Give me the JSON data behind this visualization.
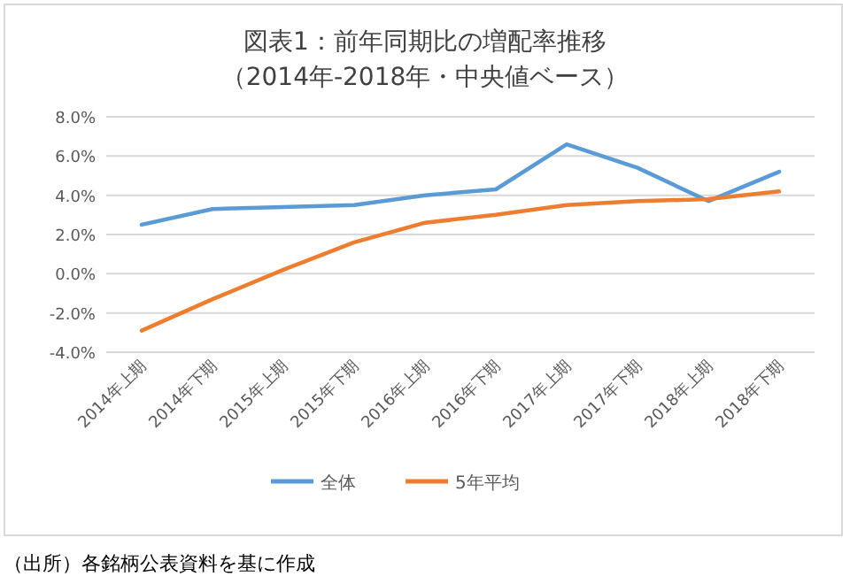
{
  "chart_data": {
    "type": "line",
    "title": "図表1：前年同期比の増配率推移",
    "subtitle": "（2014年-2018年・中央値ベース）",
    "categories": [
      "2014年上期",
      "2014年下期",
      "2015年上期",
      "2015年下期",
      "2016年上期",
      "2016年下期",
      "2017年上期",
      "2017年下期",
      "2018年上期",
      "2018年下期"
    ],
    "series": [
      {
        "name": "全体",
        "color": "#5b9bd5",
        "values": [
          2.5,
          3.3,
          3.4,
          3.5,
          4.0,
          4.3,
          6.6,
          5.4,
          3.7,
          5.2
        ]
      },
      {
        "name": "5年平均",
        "color": "#ed7d31",
        "values": [
          -2.9,
          -1.3,
          0.2,
          1.6,
          2.6,
          3.0,
          3.5,
          3.7,
          3.8,
          4.2
        ]
      }
    ],
    "ylim": [
      -4,
      8
    ],
    "yticks": [
      {
        "value": -4,
        "label": "-4.0%"
      },
      {
        "value": -2,
        "label": "-2.0%"
      },
      {
        "value": 0,
        "label": "0.0%"
      },
      {
        "value": 2,
        "label": "2.0%"
      },
      {
        "value": 4,
        "label": "4.0%"
      },
      {
        "value": 6,
        "label": "6.0%"
      },
      {
        "value": 8,
        "label": "8.0%"
      }
    ],
    "grid": "y",
    "legend": "bottom",
    "marker": "none",
    "line_style": "solid",
    "annotations": [
      "（出所）各銘柄公表資料を基に作成"
    ]
  }
}
